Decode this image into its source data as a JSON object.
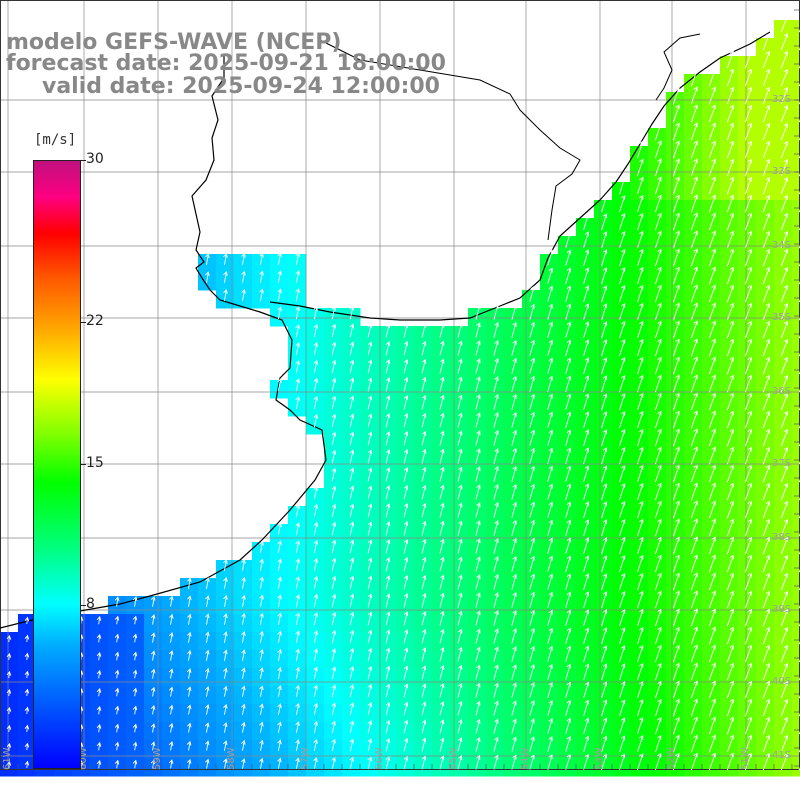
{
  "title": {
    "line1": "modelo GEFS-WAVE (NCEP)",
    "line2": "forecast date: 2025-09-21 18:00:00",
    "line3": "valid date: 2025-09-24 12:00:00"
  },
  "colorbar": {
    "unit": "[m/s]",
    "ticks": [
      "30",
      "22",
      "15",
      "8"
    ],
    "tick_values": [
      30,
      22,
      15,
      8
    ],
    "min": 0,
    "max": 30
  },
  "latitudes": [
    "32S",
    "33S",
    "34S",
    "35S",
    "36S",
    "37S",
    "38S",
    "39S",
    "40S",
    "41S"
  ],
  "longitudes": [
    "61W",
    "60W",
    "59W",
    "58W",
    "57W",
    "56W",
    "55W",
    "54W",
    "53W",
    "52W",
    "51W"
  ],
  "colors": {
    "land": "#ffffff",
    "grid": "#888888",
    "coast": "#000000",
    "arrow": "#ffffff",
    "title": "#888888"
  },
  "field_description": "wind speed shading with direction vectors, mostly from south-southwest"
}
